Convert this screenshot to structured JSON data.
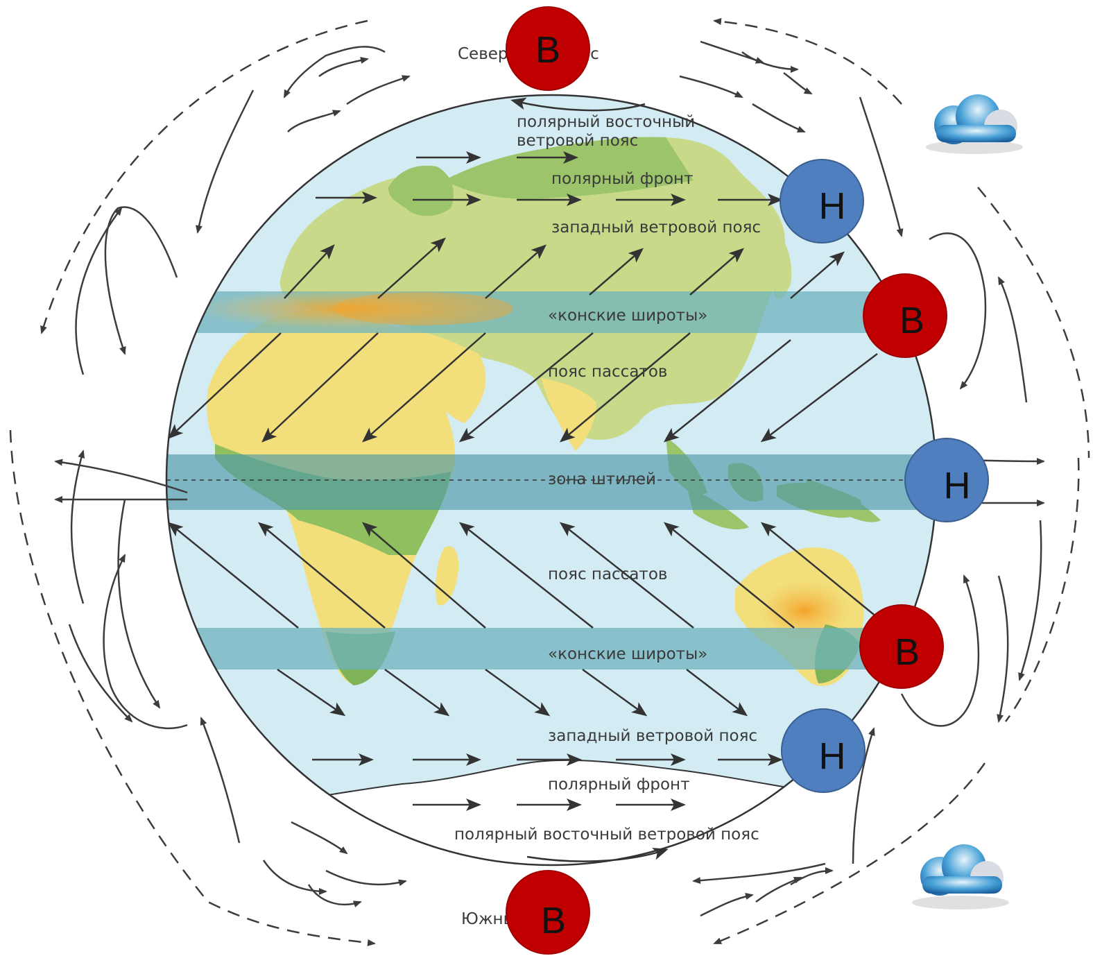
{
  "labels": {
    "north_pole": "Северный полюс",
    "south_pole": "Южный полюс",
    "north_polar_easterlies": [
      "полярный восточный",
      "ветровой пояс"
    ],
    "north_polar_front": "полярный фронт",
    "north_westerlies": "западный ветровой пояс",
    "north_horse_latitudes": "«конские широты»",
    "north_trade_winds": "пояс пассатов",
    "doldrums": "зона штилей",
    "south_trade_winds": "пояс пассатов",
    "south_horse_latitudes": "«конские широты»",
    "south_westerlies": "западный ветровой пояс",
    "south_polar_front": "полярный фронт",
    "south_polar_easterlies": "полярный восточный ветровой пояс"
  },
  "pressure_markers": [
    {
      "id": "north-pole-high",
      "letter": "В",
      "type": "high"
    },
    {
      "id": "north-60-low",
      "letter": "Н",
      "type": "low"
    },
    {
      "id": "north-30-high",
      "letter": "В",
      "type": "high"
    },
    {
      "id": "equator-low",
      "letter": "Н",
      "type": "low"
    },
    {
      "id": "south-30-high",
      "letter": "В",
      "type": "high"
    },
    {
      "id": "south-60-low",
      "letter": "Н",
      "type": "low"
    },
    {
      "id": "south-pole-high",
      "letter": "В",
      "type": "high"
    }
  ],
  "icons": [
    "cloud-icon",
    "cloud-icon"
  ],
  "colors": {
    "high_pressure": "#c00000",
    "low_pressure": "#4f7fbf",
    "ocean": "#d3ebf3",
    "band": "#6fb3be",
    "land_yellow": "#f2df7c",
    "land_green": "#9cc46a",
    "arrow": "#3c3c3c"
  }
}
